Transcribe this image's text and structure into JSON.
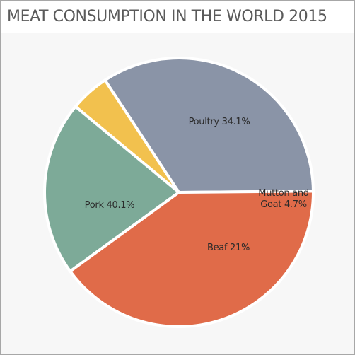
{
  "chart_data": {
    "type": "pie",
    "title": "MEAT CONSUMPTION IN THE WORLD 2015",
    "slices": [
      {
        "name": "Poultry",
        "value": 34.1,
        "label": "Poultry 34.1%",
        "color": "#8a94a7"
      },
      {
        "name": "Mutton and Goat",
        "value": 4.7,
        "label": "Mutton and Goat 4.7%",
        "label_lines": [
          "Mutton and",
          "Goat 4.7%"
        ],
        "color": "#f2c14e"
      },
      {
        "name": "Beaf",
        "value": 21,
        "label": "Beaf 21%",
        "color": "#7daa98"
      },
      {
        "name": "Pork",
        "value": 40.1,
        "label": "Pork 40.1%",
        "color": "#e06b49"
      }
    ]
  }
}
